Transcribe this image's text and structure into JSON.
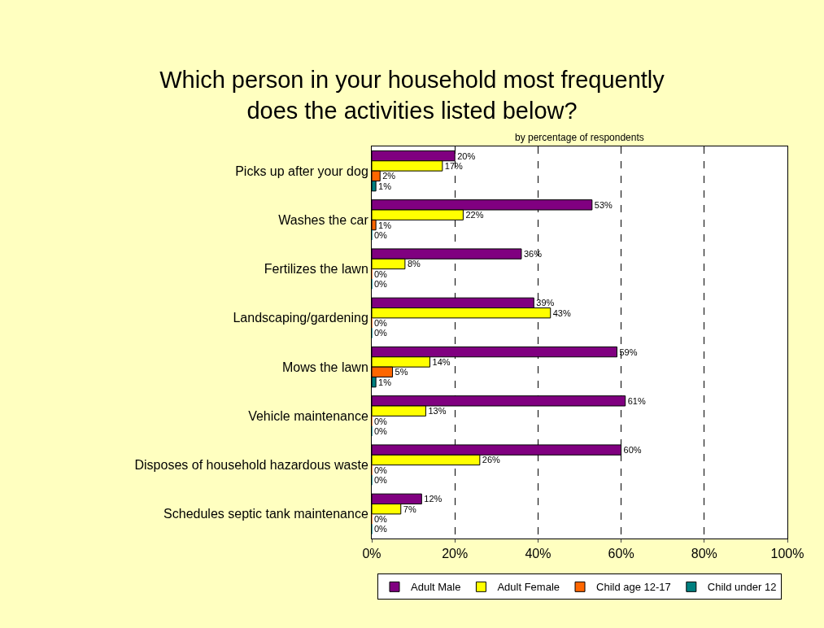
{
  "chart_data": {
    "type": "bar",
    "orientation": "horizontal",
    "title": "Which person in your household most frequently\ndoes the activities listed below?",
    "subtitle": "by percentage of respondents",
    "categories": [
      "Picks up after your dog",
      "Washes the car",
      "Fertilizes the lawn",
      "Landscaping/gardening",
      "Mows the lawn",
      "Vehicle maintenance",
      "Disposes of household hazardous waste",
      "Schedules septic tank maintenance"
    ],
    "series": [
      {
        "name": "Adult Male",
        "color": "#800080",
        "values": [
          20,
          53,
          36,
          39,
          59,
          61,
          60,
          12
        ],
        "value_labels": [
          "20%",
          "53%",
          "36%",
          "39%",
          "59%",
          "61%",
          "60%",
          "12%"
        ]
      },
      {
        "name": "Adult Female",
        "color": "#ffff00",
        "values": [
          17,
          22,
          8,
          43,
          14,
          13,
          26,
          7
        ],
        "value_labels": [
          "17%",
          "22%",
          "8%",
          "43%",
          "14%",
          "13%",
          "26%",
          "7%"
        ]
      },
      {
        "name": "Child age 12-17",
        "color": "#ff6600",
        "values": [
          2,
          1,
          0,
          0,
          5,
          0,
          0,
          0
        ],
        "value_labels": [
          "2%",
          "1%",
          "0%",
          "0%",
          "5%",
          "0%",
          "0%",
          "0%"
        ]
      },
      {
        "name": "Child under 12",
        "color": "#008080",
        "values": [
          1,
          0,
          0,
          0,
          1,
          0,
          0,
          0
        ],
        "value_labels": [
          "1%",
          "0%",
          "0%",
          "0%",
          "1%",
          "0%",
          "0%",
          "0%"
        ]
      }
    ],
    "xlim": [
      0,
      100
    ],
    "xticks": [
      {
        "value": 0,
        "label": "0%"
      },
      {
        "value": 20,
        "label": "20%"
      },
      {
        "value": 40,
        "label": "40%"
      },
      {
        "value": 60,
        "label": "60%"
      },
      {
        "value": 80,
        "label": "80%"
      },
      {
        "value": 100,
        "label": "100%"
      }
    ],
    "grid": "x",
    "legend": "bottom"
  }
}
